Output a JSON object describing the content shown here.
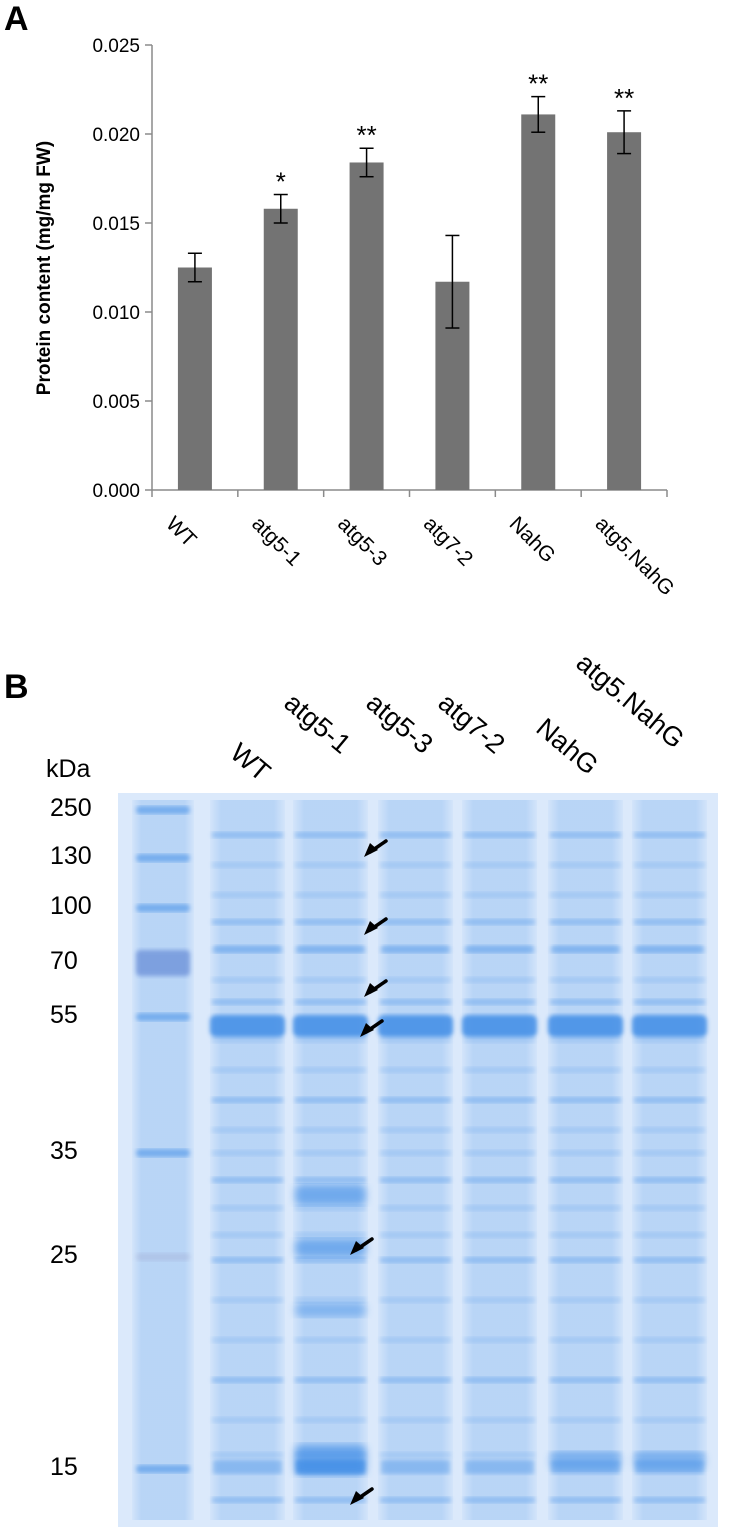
{
  "panels": {
    "a_label": "A",
    "b_label": "B"
  },
  "chart_data": {
    "type": "bar",
    "ylabel": "Protein content (mg/mg FW)",
    "xlabel": "",
    "ylim": [
      0,
      0.025
    ],
    "yticks": [
      "0.000",
      "0.005",
      "0.010",
      "0.015",
      "0.020",
      "0.025"
    ],
    "categories": [
      "WT",
      "atg5-1",
      "atg5-3",
      "atg7-2",
      "NahG",
      "atg5.NahG"
    ],
    "values": [
      0.0125,
      0.0158,
      0.0184,
      0.0117,
      0.0211,
      0.0201
    ],
    "errors": [
      0.0008,
      0.0008,
      0.0008,
      0.0026,
      0.001,
      0.0012
    ],
    "significance": [
      "",
      "*",
      "**",
      "",
      "**",
      "**"
    ],
    "bar_color": "#737373",
    "grid": false,
    "legend": "none"
  },
  "gel": {
    "unit_label": "kDa",
    "markers": [
      "250",
      "130",
      "100",
      "70",
      "55",
      "35",
      "25",
      "15"
    ],
    "lanes": [
      "WT",
      "atg5-1",
      "atg5-3",
      "atg7-2",
      "NahG",
      "atg5.NahG"
    ],
    "stain_color": "#3f8de6",
    "arrow_count": 6
  }
}
